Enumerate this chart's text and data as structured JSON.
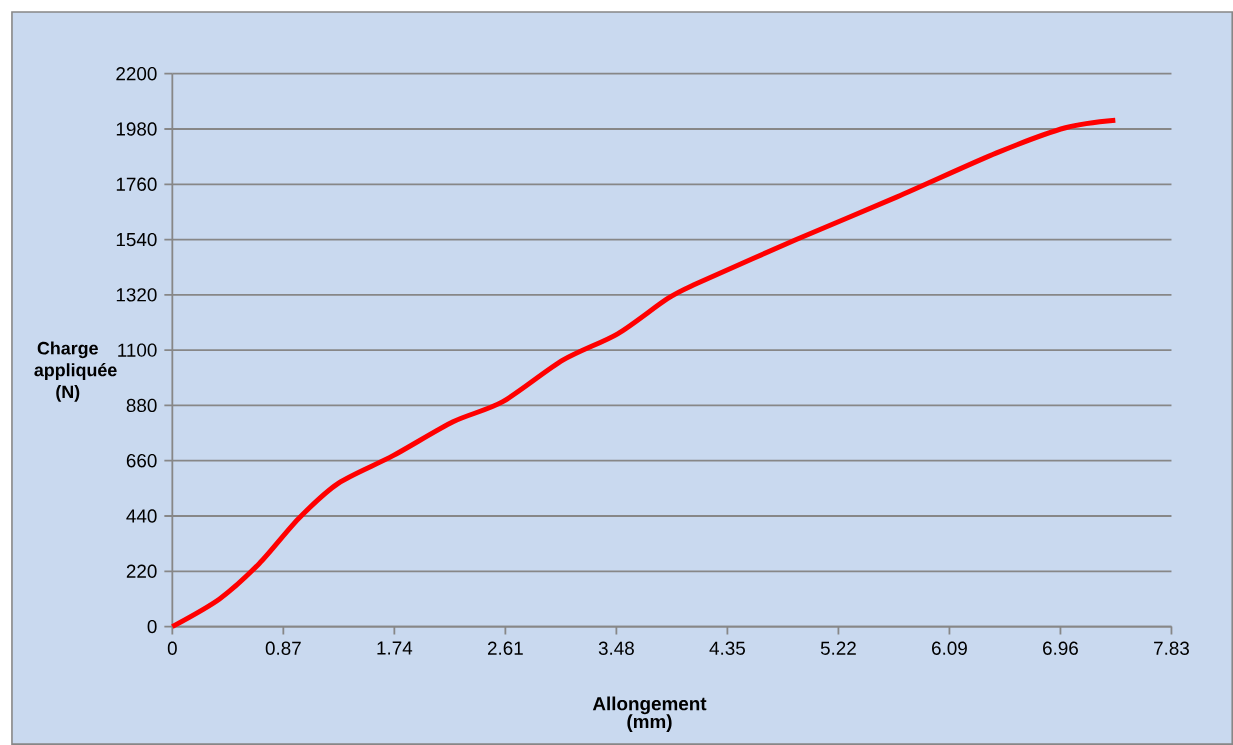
{
  "chart_data": {
    "type": "line",
    "xlabel": "Allongement (mm)",
    "ylabel": "Charge appliquée (N)",
    "x": [
      0,
      0.37,
      0.68,
      0.99,
      1.3,
      1.73,
      2.2,
      2.59,
      3.06,
      3.49,
      3.88,
      4.11,
      4.89,
      5.68,
      6.46,
      7.0,
      7.39
    ],
    "series": [
      {
        "color": "#ff0000",
        "values": [
          0,
          110,
          250,
          430,
          570,
          680,
          815,
          895,
          1060,
          1165,
          1305,
          1365,
          1540,
          1710,
          1885,
          1985,
          2015
        ]
      }
    ],
    "xlim": [
      0,
      7.83
    ],
    "ylim": [
      0,
      2200
    ],
    "xticks": [
      0,
      0.87,
      1.74,
      2.61,
      3.48,
      4.35,
      5.22,
      6.09,
      6.96,
      7.83
    ],
    "yticks": [
      0,
      220,
      440,
      660,
      880,
      1100,
      1320,
      1540,
      1760,
      1980,
      2200
    ],
    "grid": "y"
  }
}
